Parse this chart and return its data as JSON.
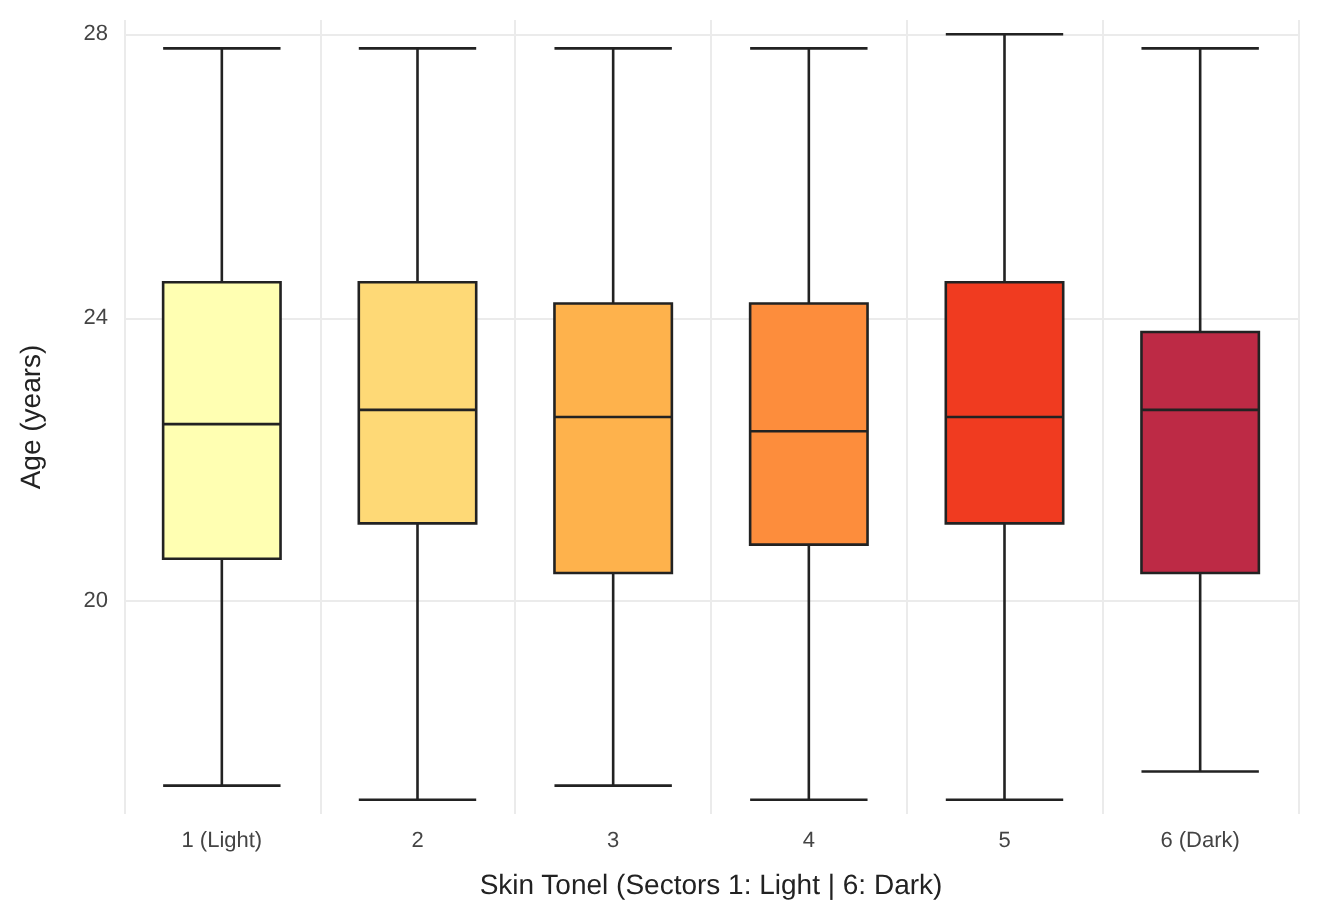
{
  "chart_data": {
    "type": "box",
    "xlabel": "Skin Tonel (Sectors 1: Light | 6: Dark)",
    "ylabel": "Age (years)",
    "categories": [
      "1 (Light)",
      "2",
      "3",
      "4",
      "5",
      "6 (Dark)"
    ],
    "colors": [
      "#ffffb2",
      "#fed976",
      "#feb24c",
      "#fd8d3c",
      "#f03b20",
      "#bd2a45"
    ],
    "boxes": [
      {
        "low": 17.4,
        "q1": 20.6,
        "median": 22.5,
        "q3": 24.5,
        "high": 27.8
      },
      {
        "low": 17.2,
        "q1": 21.1,
        "median": 22.7,
        "q3": 24.5,
        "high": 27.8
      },
      {
        "low": 17.4,
        "q1": 20.4,
        "median": 22.6,
        "q3": 24.2,
        "high": 27.8
      },
      {
        "low": 17.2,
        "q1": 20.8,
        "median": 22.4,
        "q3": 24.2,
        "high": 27.8
      },
      {
        "low": 17.2,
        "q1": 21.1,
        "median": 22.6,
        "q3": 24.5,
        "high": 28.0
      },
      {
        "low": 17.6,
        "q1": 20.4,
        "median": 22.7,
        "q3": 23.8,
        "high": 27.8
      }
    ],
    "ylim": [
      17,
      28.2
    ],
    "yticks": [
      20,
      24,
      28
    ],
    "grid": true
  }
}
